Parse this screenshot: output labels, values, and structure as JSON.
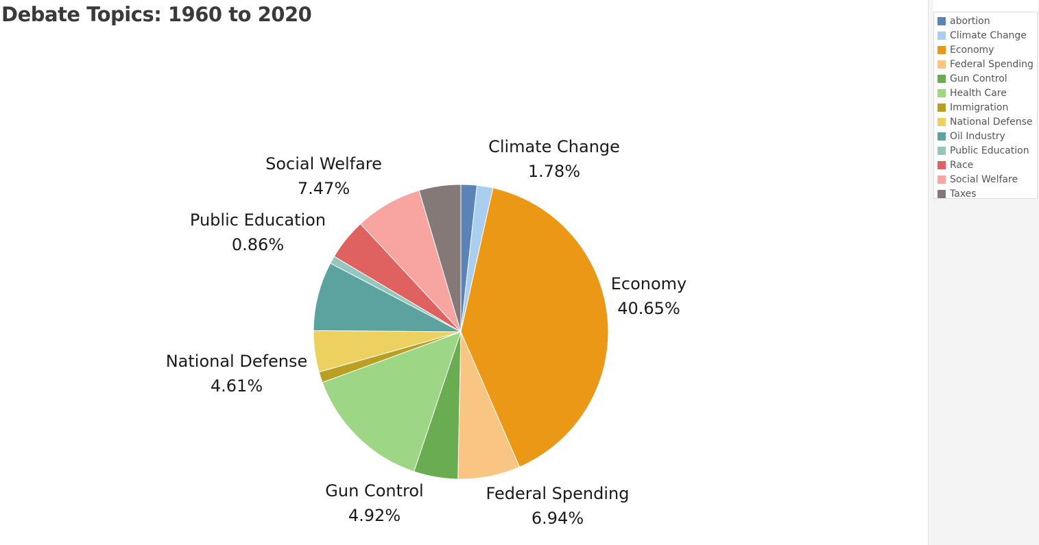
{
  "title": "Debate Topics: 1960 to 2020",
  "chart_data": {
    "type": "pie",
    "title": "Debate Topics: 1960 to 2020",
    "start_angle_deg": 0,
    "direction": "clockwise",
    "legend_position": "right",
    "slices": [
      {
        "name": "abortion",
        "value": 1.78,
        "color": "#5b83b5"
      },
      {
        "name": "Climate Change",
        "value": 1.78,
        "color": "#aacfee",
        "label": "Climate Change",
        "label_pct": "1.78%"
      },
      {
        "name": "Economy",
        "value": 40.65,
        "color": "#ec9817",
        "label": "Economy",
        "label_pct": "40.65%"
      },
      {
        "name": "Federal Spending",
        "value": 6.94,
        "color": "#f8c582",
        "label": "Federal Spending",
        "label_pct": "6.94%"
      },
      {
        "name": "Gun Control",
        "value": 4.92,
        "color": "#69ac52",
        "label": "Gun Control",
        "label_pct": "4.92%"
      },
      {
        "name": "Health Care",
        "value": 14.5,
        "color": "#9dd685"
      },
      {
        "name": "Immigration",
        "value": 1.2,
        "color": "#b99f22"
      },
      {
        "name": "National Defense",
        "value": 4.61,
        "color": "#ecd161",
        "label": "National Defense",
        "label_pct": "4.61%"
      },
      {
        "name": "Oil Industry",
        "value": 7.7,
        "color": "#5ca39f"
      },
      {
        "name": "Public Education",
        "value": 0.86,
        "color": "#94c6bd",
        "label": "Public Education",
        "label_pct": "0.86%"
      },
      {
        "name": "Race",
        "value": 4.6,
        "color": "#df6261"
      },
      {
        "name": "Social Welfare",
        "value": 7.47,
        "color": "#f8a5a2",
        "label": "Social Welfare",
        "label_pct": "7.47%"
      },
      {
        "name": "Taxes",
        "value": 4.65,
        "color": "#847977"
      }
    ]
  },
  "legend": {
    "items": [
      {
        "label": "abortion",
        "color": "#5b83b5"
      },
      {
        "label": "Climate Change",
        "color": "#aacfee"
      },
      {
        "label": "Economy",
        "color": "#ec9817"
      },
      {
        "label": "Federal Spending",
        "color": "#f8c582"
      },
      {
        "label": "Gun Control",
        "color": "#69ac52"
      },
      {
        "label": "Health Care",
        "color": "#9dd685"
      },
      {
        "label": "Immigration",
        "color": "#b99f22"
      },
      {
        "label": "National Defense",
        "color": "#ecd161"
      },
      {
        "label": "Oil Industry",
        "color": "#5ca39f"
      },
      {
        "label": "Public Education",
        "color": "#94c6bd"
      },
      {
        "label": "Race",
        "color": "#df6261"
      },
      {
        "label": "Social Welfare",
        "color": "#f8a5a2"
      },
      {
        "label": "Taxes",
        "color": "#847977"
      }
    ]
  }
}
